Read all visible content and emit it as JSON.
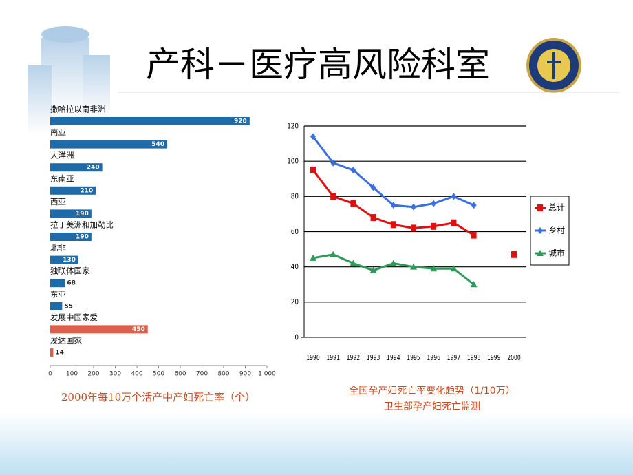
{
  "title": "产科－医疗高风险科室",
  "chart_data": [
    {
      "type": "hbar",
      "categories": [
        "撒哈拉以南非洲",
        "南亚",
        "大洋洲",
        "东南亚",
        "西亚",
        "拉丁美洲和加勒比",
        "北非",
        "独联体国家",
        "东亚",
        "发展中国家爱",
        "发达国家"
      ],
      "values": [
        920,
        540,
        240,
        210,
        190,
        190,
        130,
        68,
        55,
        450,
        14
      ],
      "colors": [
        "#1f6aa8",
        "#1f6aa8",
        "#1f6aa8",
        "#1f6aa8",
        "#1f6aa8",
        "#1f6aa8",
        "#1f6aa8",
        "#1f6aa8",
        "#1f6aa8",
        "#d9604c",
        "#d9604c"
      ],
      "xlim": [
        0,
        1000
      ],
      "xticks": [
        0,
        100,
        200,
        300,
        400,
        500,
        600,
        700,
        800,
        900,
        {
          "value": 1000,
          "label": "1 000"
        }
      ],
      "caption": "2000年每10万个活产中产妇死亡率（个）"
    },
    {
      "type": "line",
      "categories": [
        "1990",
        "1991",
        "1992",
        "1993",
        "1994",
        "1995",
        "1996",
        "1997",
        "1998",
        "1999",
        "2000"
      ],
      "series": [
        {
          "name": "总计",
          "color": "#e01010",
          "marker": "square",
          "values": [
            95,
            80,
            76,
            68,
            64,
            62,
            63,
            65,
            58,
            null,
            47
          ]
        },
        {
          "name": "乡村",
          "color": "#3a6fe0",
          "marker": "diamond",
          "values": [
            114,
            99,
            95,
            85,
            75,
            74,
            76,
            80,
            75,
            null,
            null
          ]
        },
        {
          "name": "城市",
          "color": "#2e9a5a",
          "marker": "triangle",
          "values": [
            45,
            47,
            42,
            38,
            42,
            40,
            39,
            39,
            30,
            null,
            null
          ]
        }
      ],
      "ylim": [
        0,
        120
      ],
      "yticks": [
        0,
        20,
        40,
        60,
        80,
        100,
        120
      ],
      "grid": true,
      "legend": "right",
      "caption": "全国孕产妇死亡率变化趋势（1/10万）",
      "subcaption": "卫生部孕产妇死亡监测"
    }
  ]
}
